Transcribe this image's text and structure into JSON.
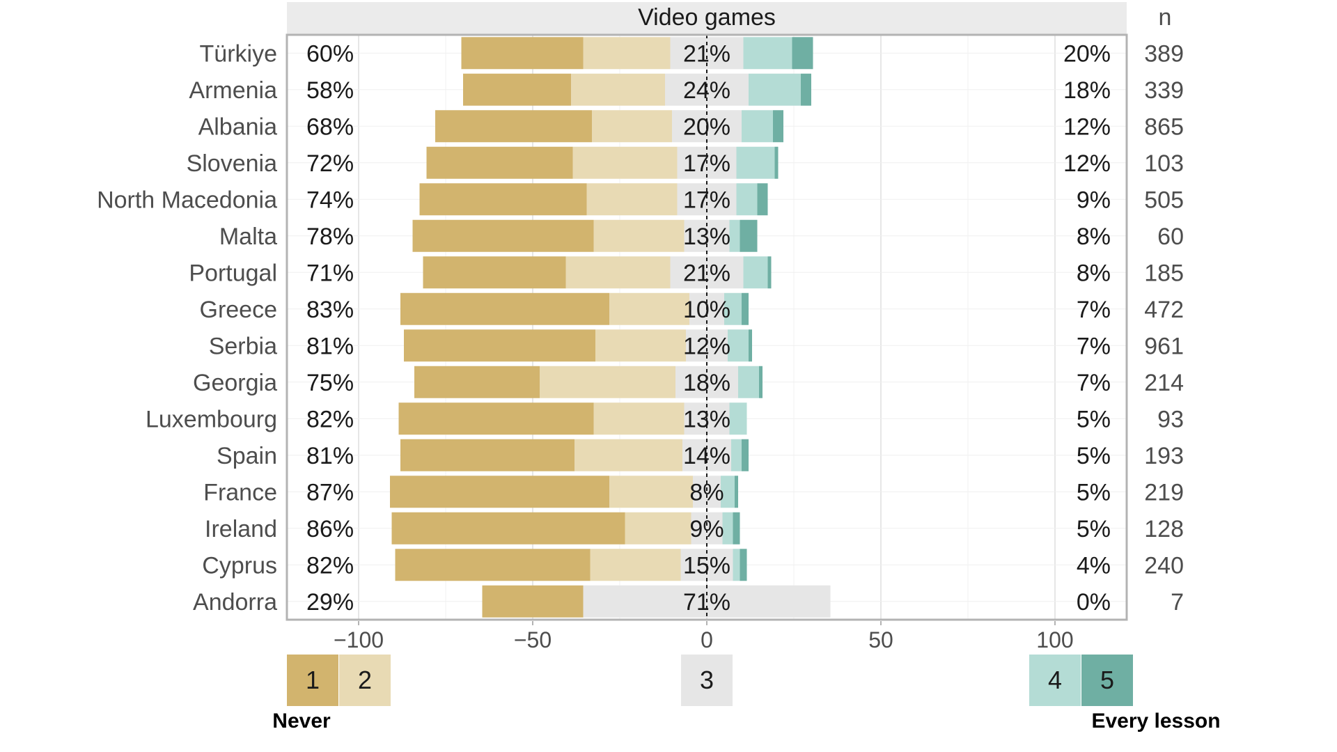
{
  "chart_data": {
    "type": "bar",
    "subtype": "diverging-stacked",
    "title": "Video games",
    "n_header": "n",
    "xlim": [
      -120,
      120
    ],
    "xticks": [
      -100,
      -50,
      0,
      50,
      100
    ],
    "xtick_labels": [
      "−100",
      "−50",
      "0",
      "50",
      "100"
    ],
    "grid": true,
    "legend": {
      "placement": "bottom",
      "items": [
        {
          "label": "1",
          "color": "#D2B46E"
        },
        {
          "label": "2",
          "color": "#E8DAB4"
        },
        {
          "label": "3",
          "color": "#E6E6E6"
        },
        {
          "label": "4",
          "color": "#B4DCD5"
        },
        {
          "label": "5",
          "color": "#6FAFA3"
        }
      ],
      "left_end_label": "Never",
      "right_end_label": "Every lesson"
    },
    "categories": [
      "Türkiye",
      "Armenia",
      "Albania",
      "Slovenia",
      "North Macedonia",
      "Malta",
      "Portugal",
      "Greece",
      "Serbia",
      "Georgia",
      "Luxembourg",
      "Spain",
      "France",
      "Ireland",
      "Cyprus",
      "Andorra"
    ],
    "series": [
      {
        "name": "1",
        "values": [
          35,
          31,
          45,
          42,
          48,
          52,
          41,
          60,
          55,
          36,
          56,
          50,
          63,
          67,
          56,
          29
        ]
      },
      {
        "name": "2",
        "values": [
          25,
          27,
          23,
          30,
          26,
          26,
          30,
          23,
          26,
          39,
          26,
          31,
          24,
          19,
          26,
          0
        ]
      },
      {
        "name": "3",
        "values": [
          21,
          24,
          20,
          17,
          17,
          13,
          21,
          10,
          12,
          18,
          13,
          14,
          8,
          9,
          15,
          71
        ]
      },
      {
        "name": "4",
        "values": [
          14,
          15,
          9,
          11,
          6,
          3,
          7,
          5,
          6,
          6,
          5,
          3,
          4,
          3,
          2,
          0
        ]
      },
      {
        "name": "5",
        "values": [
          6,
          3,
          3,
          1,
          3,
          5,
          1,
          2,
          1,
          1,
          0,
          2,
          1,
          2,
          2,
          0
        ]
      }
    ],
    "left_totals": [
      "60%",
      "58%",
      "68%",
      "72%",
      "74%",
      "78%",
      "71%",
      "83%",
      "81%",
      "75%",
      "82%",
      "81%",
      "87%",
      "86%",
      "82%",
      "29%"
    ],
    "neutral_totals": [
      "21%",
      "24%",
      "20%",
      "17%",
      "17%",
      "13%",
      "21%",
      "10%",
      "12%",
      "18%",
      "13%",
      "14%",
      "8%",
      "9%",
      "15%",
      "71%"
    ],
    "right_totals": [
      "20%",
      "18%",
      "12%",
      "12%",
      "9%",
      "8%",
      "8%",
      "7%",
      "7%",
      "7%",
      "5%",
      "5%",
      "5%",
      "5%",
      "4%",
      "0%"
    ],
    "n": [
      "389",
      "339",
      "865",
      "103",
      "505",
      "60",
      "185",
      "472",
      "961",
      "214",
      "93",
      "193",
      "219",
      "128",
      "240",
      "7"
    ]
  }
}
